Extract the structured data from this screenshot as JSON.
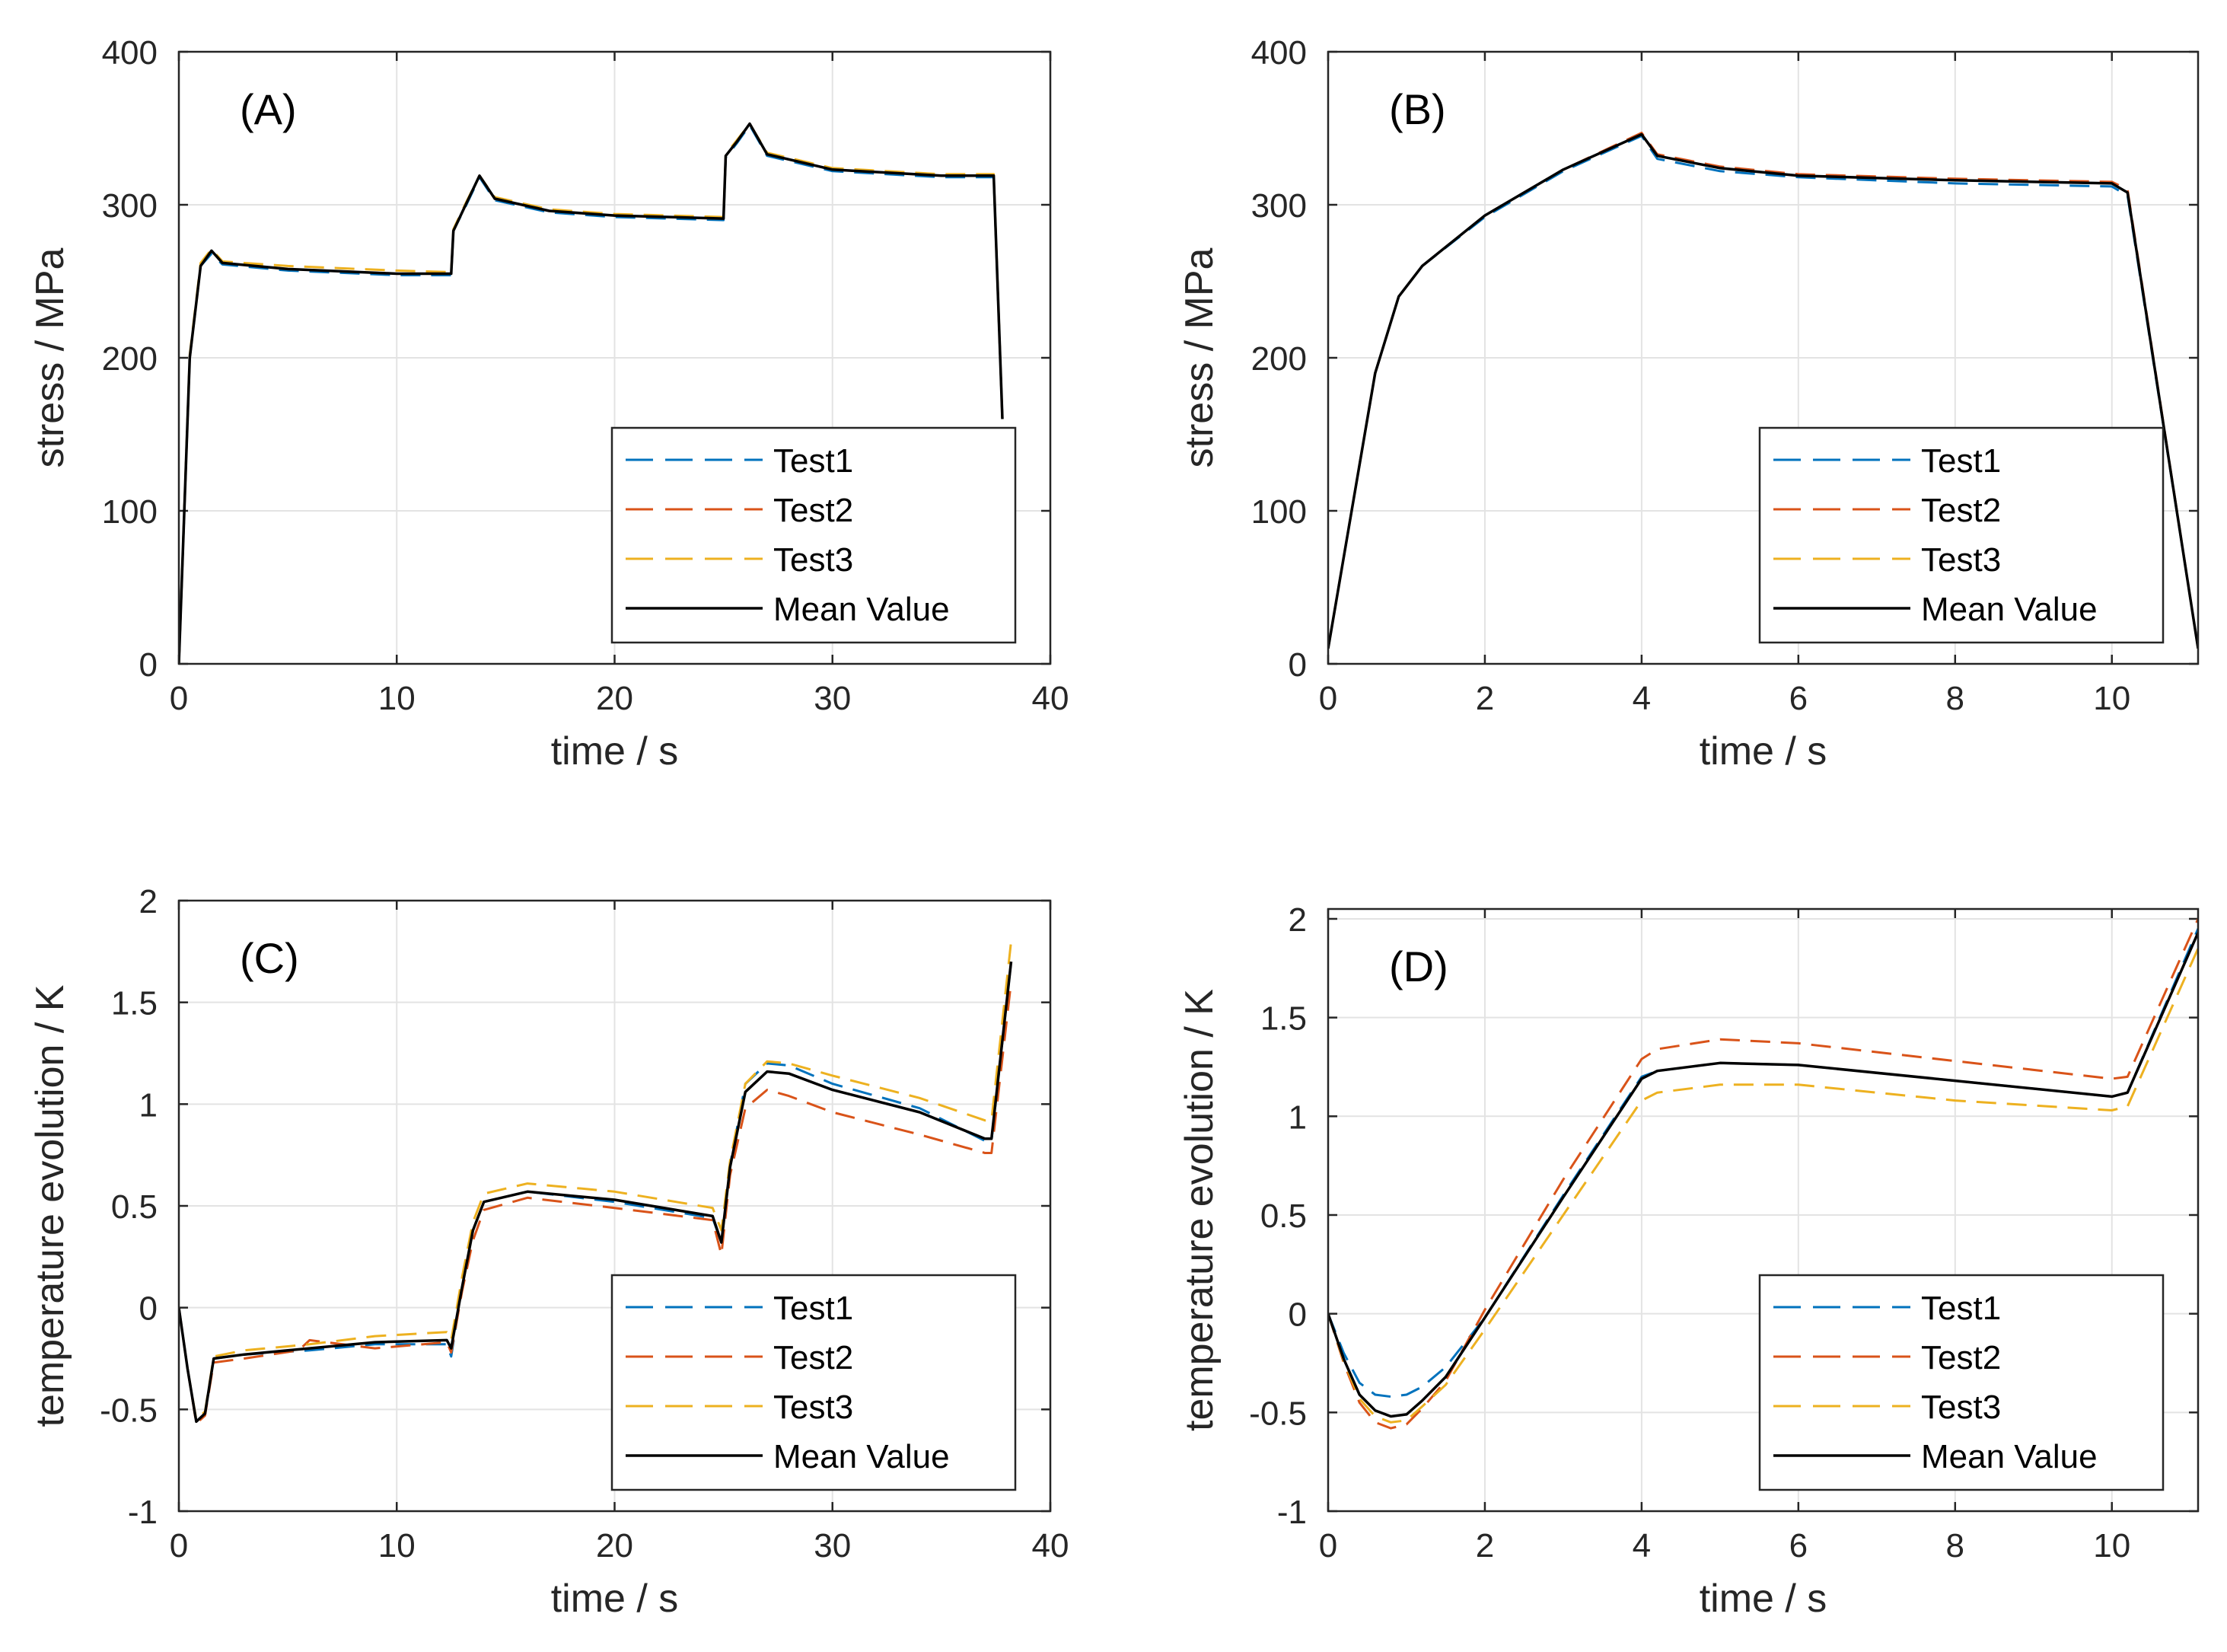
{
  "chart_data": [
    {
      "type": "line",
      "panel": "(A)",
      "xlabel": "time / s",
      "ylabel": "stress / MPa",
      "xlim": [
        0,
        40
      ],
      "ylim": [
        0,
        400
      ],
      "xticks": [
        "0",
        "10",
        "20",
        "30",
        "40"
      ],
      "yticks": [
        "0",
        "100",
        "200",
        "300",
        "400"
      ],
      "grid": true,
      "legend_position": "bottom-right",
      "series": [
        {
          "name": "Test1",
          "color": "#0072BD",
          "style": "dashed",
          "x": [
            0,
            0.5,
            1.0,
            1.5,
            2,
            5,
            10,
            12.5,
            12.6,
            13.2,
            13.8,
            14.5,
            17,
            20,
            25,
            25.1,
            25.6,
            26.2,
            27,
            30,
            35,
            37.4,
            37.8
          ],
          "y": [
            0,
            200,
            260,
            268,
            261,
            257,
            254,
            254,
            283,
            300,
            318,
            303,
            295,
            292,
            290,
            331,
            340,
            352,
            332,
            322,
            318,
            318,
            160
          ]
        },
        {
          "name": "Test2",
          "color": "#D95319",
          "style": "dashed",
          "x": [
            0,
            0.5,
            1.0,
            1.5,
            2,
            5,
            10,
            12.5,
            12.6,
            13.2,
            13.8,
            14.5,
            17,
            20,
            25,
            25.1,
            25.6,
            26.2,
            27,
            30,
            35,
            37.4,
            37.8
          ],
          "y": [
            0,
            200,
            260,
            270,
            262,
            258,
            255,
            255,
            283,
            301,
            319,
            304,
            296,
            293,
            291,
            332,
            341,
            353,
            333,
            323,
            319,
            319,
            160
          ]
        },
        {
          "name": "Test3",
          "color": "#EDB120",
          "style": "dashed",
          "x": [
            0,
            0.5,
            1.0,
            1.5,
            2,
            5,
            10,
            12.5,
            12.6,
            13.2,
            13.8,
            14.5,
            17,
            20,
            25,
            25.1,
            25.6,
            26.2,
            27,
            30,
            35,
            37.4,
            37.8
          ],
          "y": [
            0,
            202,
            262,
            271,
            263,
            260,
            257,
            256,
            284,
            302,
            319,
            305,
            297,
            294,
            292,
            333,
            342,
            353,
            334,
            324,
            320,
            320,
            160
          ]
        },
        {
          "name": "Mean Value",
          "color": "#000000",
          "style": "solid",
          "x": [
            0,
            0.5,
            1.0,
            1.5,
            2,
            5,
            10,
            12.5,
            12.6,
            13.2,
            13.8,
            14.5,
            17,
            20,
            25,
            25.1,
            25.6,
            26.2,
            27,
            30,
            35,
            37.4,
            37.8
          ],
          "y": [
            0,
            200,
            260,
            270,
            262,
            258,
            255,
            255,
            283,
            301,
            319,
            304,
            296,
            293,
            291,
            332,
            341,
            353,
            333,
            323,
            319,
            319,
            160
          ]
        }
      ]
    },
    {
      "type": "line",
      "panel": "(B)",
      "xlabel": "time / s",
      "ylabel": "stress / MPa",
      "xlim": [
        0,
        11.1
      ],
      "ylim": [
        0,
        400
      ],
      "xticks": [
        "0",
        "2",
        "4",
        "6",
        "8",
        "10"
      ],
      "yticks": [
        "0",
        "100",
        "200",
        "300",
        "400"
      ],
      "grid": true,
      "legend_position": "bottom-right",
      "series": [
        {
          "name": "Test1",
          "color": "#0072BD",
          "style": "dashed",
          "x": [
            0,
            0.3,
            0.6,
            0.9,
            1.2,
            2,
            3,
            4,
            4.2,
            5,
            6,
            8,
            10,
            10.2,
            11.1
          ],
          "y": [
            10,
            100,
            190,
            240,
            260,
            292,
            322,
            345,
            330,
            322,
            318,
            314,
            312,
            306,
            10
          ]
        },
        {
          "name": "Test2",
          "color": "#D95319",
          "style": "dashed",
          "x": [
            0,
            0.3,
            0.6,
            0.9,
            1.2,
            2,
            3,
            4,
            4.2,
            5,
            6,
            8,
            10,
            10.2,
            11.1
          ],
          "y": [
            10,
            100,
            190,
            240,
            260,
            293,
            323,
            347,
            333,
            325,
            320,
            317,
            315,
            310,
            10
          ]
        },
        {
          "name": "Test3",
          "color": "#EDB120",
          "style": "dashed",
          "x": [
            0,
            0.3,
            0.6,
            0.9,
            1.2,
            2,
            3,
            4,
            4.2,
            5,
            6,
            8,
            10,
            10.2,
            11.1
          ],
          "y": [
            10,
            100,
            190,
            240,
            260,
            293,
            323,
            346,
            332,
            324,
            319,
            316,
            314,
            308,
            10
          ]
        },
        {
          "name": "Mean Value",
          "color": "#000000",
          "style": "solid",
          "x": [
            0,
            0.3,
            0.6,
            0.9,
            1.2,
            2,
            3,
            4,
            4.2,
            5,
            6,
            8,
            10,
            10.2,
            11.1
          ],
          "y": [
            10,
            100,
            190,
            240,
            260,
            293,
            323,
            346,
            332,
            324,
            319,
            316,
            314,
            308,
            10
          ]
        }
      ]
    },
    {
      "type": "line",
      "panel": "(C)",
      "xlabel": "time / s",
      "ylabel": "temperature evolution / K",
      "xlim": [
        0,
        40
      ],
      "ylim": [
        -1,
        2
      ],
      "xticks": [
        "0",
        "10",
        "20",
        "30",
        "40"
      ],
      "yticks": [
        "-1",
        "-0.5",
        "0",
        "0.5",
        "1",
        "1.5",
        "2"
      ],
      "grid": true,
      "legend_position": "bottom-right",
      "series": [
        {
          "name": "Test1",
          "color": "#0072BD",
          "style": "dashed",
          "x": [
            0,
            0.4,
            0.8,
            1.2,
            1.6,
            3,
            6,
            9,
            12.3,
            12.5,
            13,
            13.5,
            14,
            16,
            20,
            24.5,
            24.9,
            25.3,
            26,
            27,
            28,
            30,
            34,
            37,
            37.3,
            38.2
          ],
          "y": [
            0,
            -0.3,
            -0.56,
            -0.52,
            -0.25,
            -0.23,
            -0.21,
            -0.18,
            -0.18,
            -0.24,
            0.1,
            0.38,
            0.52,
            0.57,
            0.52,
            0.44,
            0.32,
            0.7,
            1.1,
            1.2,
            1.19,
            1.1,
            0.98,
            0.82,
            0.82,
            1.7
          ]
        },
        {
          "name": "Test2",
          "color": "#D95319",
          "style": "dashed",
          "x": [
            0,
            0.4,
            0.8,
            1.2,
            1.6,
            3,
            5.5,
            6,
            9,
            12.3,
            12.5,
            13,
            13.5,
            14,
            16,
            20,
            24.5,
            24.9,
            25.3,
            26,
            27,
            28,
            30,
            34,
            37,
            37.3,
            38.2
          ],
          "y": [
            0,
            -0.3,
            -0.57,
            -0.53,
            -0.27,
            -0.25,
            -0.21,
            -0.16,
            -0.2,
            -0.17,
            -0.22,
            0.08,
            0.33,
            0.48,
            0.54,
            0.49,
            0.43,
            0.26,
            0.65,
            0.98,
            1.07,
            1.04,
            0.96,
            0.85,
            0.76,
            0.76,
            1.6
          ]
        },
        {
          "name": "Test3",
          "color": "#EDB120",
          "style": "dashed",
          "x": [
            0,
            0.4,
            0.8,
            1.2,
            1.6,
            3,
            6,
            9,
            12.3,
            12.5,
            13,
            13.5,
            14,
            16,
            20,
            24.5,
            24.9,
            25.3,
            26,
            27,
            28,
            30,
            34,
            37,
            37.3,
            38.2
          ],
          "y": [
            0,
            -0.3,
            -0.55,
            -0.51,
            -0.24,
            -0.21,
            -0.18,
            -0.14,
            -0.12,
            -0.16,
            0.15,
            0.42,
            0.56,
            0.61,
            0.57,
            0.49,
            0.38,
            0.72,
            1.1,
            1.21,
            1.2,
            1.14,
            1.03,
            0.92,
            0.92,
            1.8
          ]
        },
        {
          "name": "Mean Value",
          "color": "#000000",
          "style": "solid",
          "x": [
            0,
            0.4,
            0.8,
            1.2,
            1.6,
            3,
            6,
            9,
            12.3,
            12.5,
            13,
            13.5,
            14,
            16,
            20,
            24.5,
            24.9,
            25.3,
            26,
            27,
            28,
            30,
            34,
            37,
            37.3,
            38.2
          ],
          "y": [
            0,
            -0.3,
            -0.56,
            -0.52,
            -0.25,
            -0.23,
            -0.2,
            -0.17,
            -0.16,
            -0.2,
            0.1,
            0.38,
            0.52,
            0.57,
            0.53,
            0.45,
            0.32,
            0.69,
            1.06,
            1.16,
            1.15,
            1.07,
            0.96,
            0.83,
            0.83,
            1.7
          ]
        }
      ]
    },
    {
      "type": "line",
      "panel": "(D)",
      "xlabel": "time / s",
      "ylabel": "temperature evolution / K",
      "xlim": [
        0,
        11.1
      ],
      "ylim": [
        -1,
        2.05
      ],
      "xticks": [
        "0",
        "2",
        "4",
        "6",
        "8",
        "10"
      ],
      "yticks": [
        "-1",
        "-0.5",
        "0",
        "0.5",
        "1",
        "1.5",
        "2"
      ],
      "grid": true,
      "legend_position": "bottom-right",
      "series": [
        {
          "name": "Test1",
          "color": "#0072BD",
          "style": "dashed",
          "x": [
            0,
            0.2,
            0.4,
            0.6,
            0.8,
            1.0,
            1.2,
            1.5,
            2,
            3,
            4,
            4.2,
            5,
            6,
            8,
            10,
            10.2,
            11.1
          ],
          "y": [
            0,
            -0.2,
            -0.35,
            -0.41,
            -0.42,
            -0.41,
            -0.37,
            -0.27,
            -0.02,
            0.6,
            1.2,
            1.23,
            1.27,
            1.26,
            1.18,
            1.1,
            1.12,
            1.95
          ]
        },
        {
          "name": "Test2",
          "color": "#D95319",
          "style": "dashed",
          "x": [
            0,
            0.2,
            0.4,
            0.6,
            0.8,
            1.0,
            1.2,
            1.5,
            2,
            3,
            4,
            4.2,
            5,
            6,
            8,
            10,
            10.2,
            11.1
          ],
          "y": [
            0,
            -0.25,
            -0.45,
            -0.55,
            -0.58,
            -0.56,
            -0.48,
            -0.34,
            0.02,
            0.68,
            1.29,
            1.34,
            1.39,
            1.37,
            1.28,
            1.19,
            1.2,
            2.0
          ]
        },
        {
          "name": "Test3",
          "color": "#EDB120",
          "style": "dashed",
          "x": [
            0,
            0.2,
            0.4,
            0.6,
            0.8,
            1.0,
            1.2,
            1.5,
            2,
            3,
            4,
            4.2,
            5,
            6,
            8,
            10,
            10.2,
            11.1
          ],
          "y": [
            0,
            -0.24,
            -0.43,
            -0.52,
            -0.55,
            -0.54,
            -0.47,
            -0.36,
            -0.08,
            0.5,
            1.08,
            1.12,
            1.16,
            1.16,
            1.08,
            1.03,
            1.05,
            1.85
          ]
        },
        {
          "name": "Mean Value",
          "color": "#000000",
          "style": "solid",
          "x": [
            0,
            0.2,
            0.4,
            0.6,
            0.8,
            1.0,
            1.2,
            1.5,
            2,
            3,
            4,
            4.2,
            5,
            6,
            8,
            10,
            10.2,
            11.1
          ],
          "y": [
            0,
            -0.23,
            -0.41,
            -0.49,
            -0.52,
            -0.51,
            -0.44,
            -0.32,
            -0.02,
            0.59,
            1.19,
            1.23,
            1.27,
            1.26,
            1.18,
            1.1,
            1.12,
            1.93
          ]
        }
      ]
    }
  ]
}
